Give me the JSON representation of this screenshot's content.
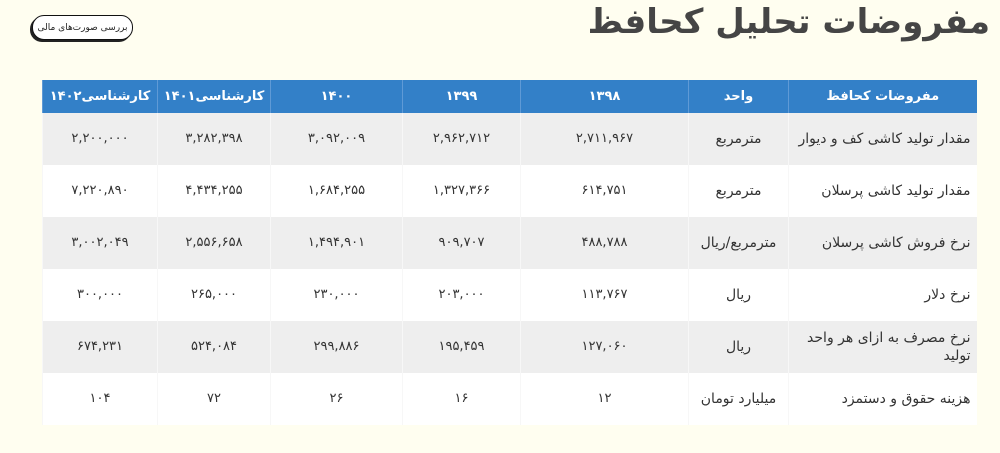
{
  "page": {
    "title": "مفروضات تحلیل کحافظ",
    "button_label": "بررسی صورت‌های مالی"
  },
  "colors": {
    "header_bg": "#3380c8",
    "stripe": "#eeeeee",
    "title": "#454545",
    "background": "#fffef0"
  },
  "table": {
    "headers": [
      "مفروضات کحافظ",
      "واحد",
      "۱۳۹۸",
      "۱۳۹۹",
      "۱۴۰۰",
      "کارشناسی۱۴۰۱",
      "کارشناسی۱۴۰۲"
    ],
    "rows": [
      [
        "مقدار تولید کاشی کف و دیوار",
        "مترمربع",
        "۲,۷۱۱,۹۶۷",
        "۲,۹۶۲,۷۱۲",
        "۳,۰۹۲,۰۰۹",
        "۳,۲۸۲,۳۹۸",
        "۲,۲۰۰,۰۰۰"
      ],
      [
        "مقدار تولید کاشی پرسلان",
        "مترمربع",
        "۶۱۴,۷۵۱",
        "۱,۳۲۷,۳۶۶",
        "۱,۶۸۴,۲۵۵",
        "۴,۴۳۴,۲۵۵",
        "۷,۲۲۰,۸۹۰"
      ],
      [
        "نرخ فروش کاشی پرسلان",
        "مترمربع/ریال",
        "۴۸۸,۷۸۸",
        "۹۰۹,۷۰۷",
        "۱,۴۹۴,۹۰۱",
        "۲,۵۵۶,۶۵۸",
        "۳,۰۰۲,۰۴۹"
      ],
      [
        "نرخ دلار",
        "ریال",
        "۱۱۳,۷۶۷",
        "۲۰۳,۰۰۰",
        "۲۳۰,۰۰۰",
        "۲۶۵,۰۰۰",
        "۳۰۰,۰۰۰"
      ],
      [
        "نرخ مصرف به ازای هر واحد تولید",
        "ریال",
        "۱۲۷,۰۶۰",
        "۱۹۵,۴۵۹",
        "۲۹۹,۸۸۶",
        "۵۲۴,۰۸۴",
        "۶۷۴,۲۳۱"
      ],
      [
        "هزینه حقوق و دستمزد",
        "میلیارد تومان",
        "۱۲",
        "۱۶",
        "۲۶",
        "۷۲",
        "۱۰۴"
      ]
    ]
  }
}
